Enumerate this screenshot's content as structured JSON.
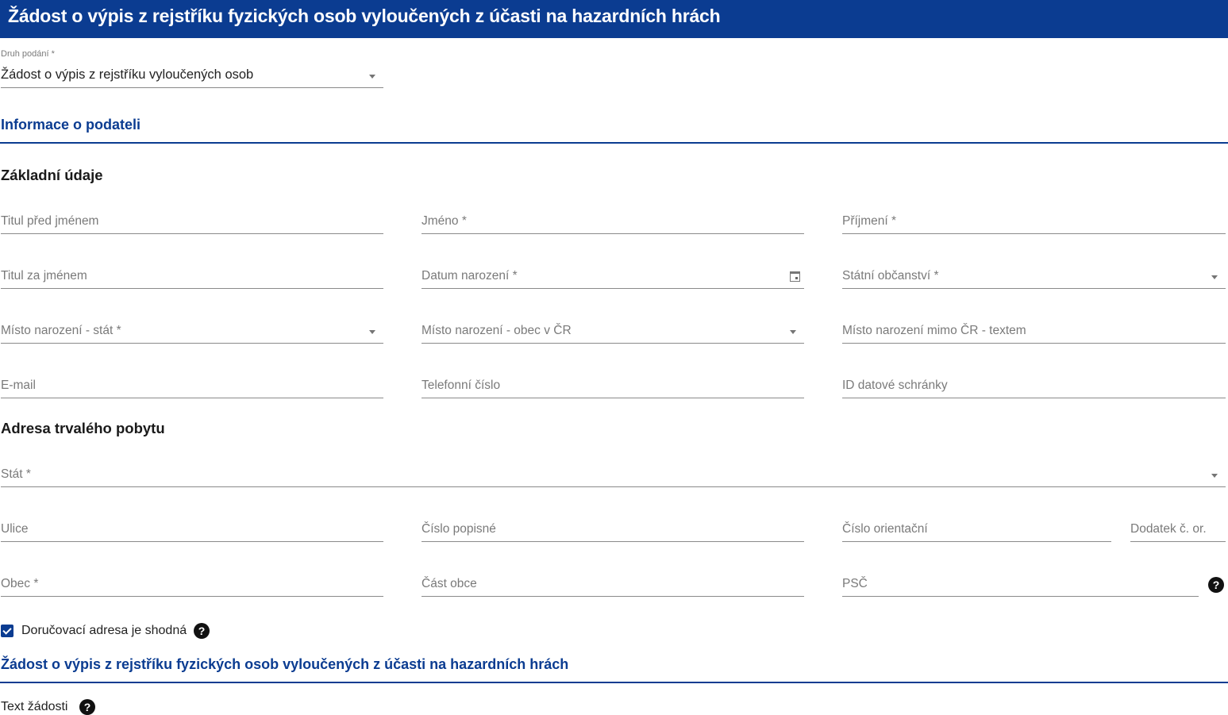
{
  "header": {
    "title": "Žádost o výpis z rejstříku fyzických osob vyloučených z účasti na hazardních hrách"
  },
  "submission_type": {
    "label": "Druh podání *",
    "value": "Žádost o výpis z rejstříku vyloučených osob"
  },
  "sections": {
    "applicant": "Informace o podateli",
    "basic": "Základní údaje",
    "address": "Adresa trvalého pobytu",
    "request": "Žádost o výpis z rejstříku fyzických osob vyloučených z účasti na hazardních hrách"
  },
  "fields": {
    "title_before": "Titul před jménem",
    "first_name": "Jméno *",
    "last_name": "Příjmení *",
    "title_after": "Titul za jménem",
    "birth_date": "Datum narození *",
    "citizenship": "Státní občanství *",
    "birth_country": "Místo narození - stát *",
    "birth_city_cz": "Místo narození - obec v ČR",
    "birth_place_text": "Místo narození mimo ČR - textem",
    "email": "E-mail",
    "phone": "Telefonní číslo",
    "databox": "ID datové schránky",
    "country": "Stát *",
    "street": "Ulice",
    "house_no": "Číslo popisné",
    "orient_no": "Číslo orientační",
    "orient_suffix": "Dodatek č. or.",
    "city": "Obec *",
    "city_part": "Část obce",
    "zip": "PSČ"
  },
  "delivery_same": {
    "label": "Doručovací adresa je shodná",
    "checked": true
  },
  "request_text": {
    "label": "Text žádosti"
  },
  "colors": {
    "brand": "#0b3c91"
  }
}
